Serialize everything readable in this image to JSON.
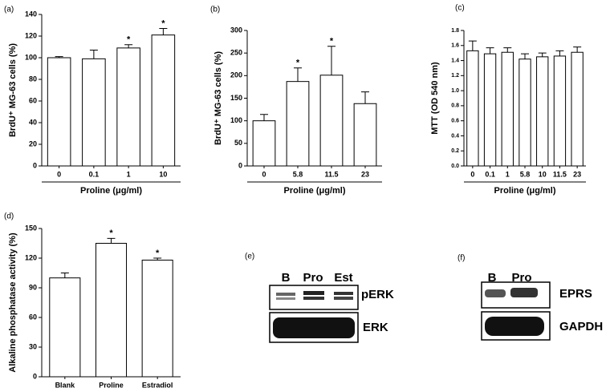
{
  "chart_data": [
    {
      "type": "bar",
      "panel": "(a)",
      "ylabel": "BrdU⁺ MG-63 cells (%)",
      "xlabel": "Proline (μg/ml)",
      "categories": [
        "0",
        "0.1",
        "1",
        "10"
      ],
      "values": [
        100,
        99,
        109,
        121
      ],
      "errors": [
        1,
        8,
        3,
        6
      ],
      "significance": [
        null,
        null,
        "*",
        "*"
      ],
      "ylim": [
        0,
        140
      ],
      "yticks": [
        0,
        20,
        40,
        60,
        80,
        100,
        120,
        140
      ]
    },
    {
      "type": "bar",
      "panel": "(b)",
      "ylabel": "BrdU⁺ MG-63 cells (%)",
      "xlabel": "Proline (μg/ml)",
      "categories": [
        "0",
        "5.8",
        "11.5",
        "23"
      ],
      "values": [
        100,
        187,
        201,
        138
      ],
      "errors": [
        14,
        30,
        64,
        26
      ],
      "significance": [
        null,
        "*",
        "*",
        null
      ],
      "ylim": [
        0,
        300
      ],
      "yticks": [
        0,
        50,
        100,
        150,
        200,
        250,
        300
      ]
    },
    {
      "type": "bar",
      "panel": "(c)",
      "ylabel": "MTT (OD 540 nm)",
      "xlabel": "Proline (μg/ml)",
      "categories": [
        "0",
        "0.1",
        "1",
        "5.8",
        "10",
        "11.5",
        "23"
      ],
      "values": [
        1.53,
        1.49,
        1.51,
        1.42,
        1.45,
        1.46,
        1.51
      ],
      "errors": [
        0.13,
        0.08,
        0.06,
        0.07,
        0.05,
        0.07,
        0.07
      ],
      "ylim": [
        0,
        1.8
      ],
      "yticks": [
        {
          "value": 0,
          "label": "0.0"
        },
        0.2,
        0.4,
        0.6,
        0.8,
        {
          "value": 1,
          "label": "1.0"
        },
        1.2,
        1.4,
        1.6,
        1.8
      ]
    },
    {
      "type": "bar",
      "panel": "(d)",
      "ylabel": "Alkaline phosphatase activity (%)",
      "categories": [
        "Blank",
        "Proline",
        "Estradiol"
      ],
      "values": [
        100,
        135,
        118
      ],
      "errors": [
        5,
        5,
        2
      ],
      "significance": [
        null,
        "*",
        "*"
      ],
      "ylim": [
        0,
        150
      ],
      "yticks": [
        0,
        30,
        60,
        90,
        120,
        150
      ]
    }
  ],
  "blots": [
    {
      "panel": "(e)",
      "lanes": [
        "B",
        "Pro",
        "Est"
      ],
      "rows": [
        "pERK",
        "ERK"
      ]
    },
    {
      "panel": "(f)",
      "lanes": [
        "B",
        "Pro"
      ],
      "rows": [
        "EPRS",
        "GAPDH"
      ]
    }
  ]
}
